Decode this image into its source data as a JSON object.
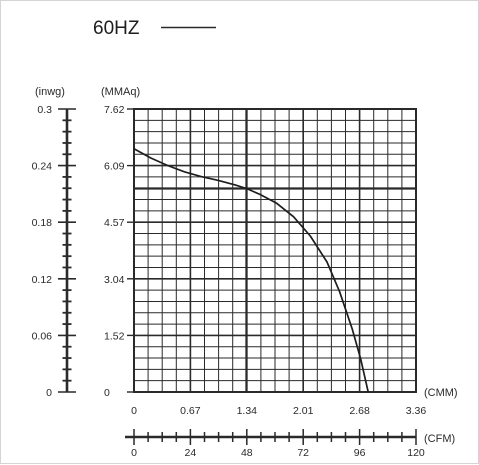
{
  "chart_data": {
    "type": "line",
    "title": "",
    "legend": [
      {
        "label": "60HZ",
        "color": "#2a2a2a",
        "style": "solid"
      }
    ],
    "x_axes": [
      {
        "unit": "(CMM)",
        "ticks": [
          "0",
          "0.67",
          "1.34",
          "2.01",
          "2.68",
          "3.36"
        ],
        "range": [
          0,
          3.36
        ]
      },
      {
        "unit": "(CFM)",
        "ticks": [
          "0",
          "24",
          "48",
          "72",
          "96",
          "120"
        ],
        "range": [
          0,
          120
        ]
      }
    ],
    "y_axes": [
      {
        "unit": "(inwg)",
        "ticks": [
          "0",
          "0.06",
          "0.12",
          "0.18",
          "0.24",
          "0.3"
        ],
        "range": [
          0,
          0.3
        ]
      },
      {
        "unit": "(MMAq)",
        "ticks": [
          "0",
          "1.52",
          "3.04",
          "4.57",
          "6.09",
          "7.62"
        ],
        "range": [
          0,
          7.62
        ]
      }
    ],
    "grid": true,
    "series": [
      {
        "name": "60HZ",
        "x_unit": "CMM",
        "y_unit": "MMAq",
        "points": [
          [
            0,
            6.55
          ],
          [
            0.2,
            6.3
          ],
          [
            0.4,
            6.1
          ],
          [
            0.6,
            5.93
          ],
          [
            0.8,
            5.8
          ],
          [
            1.0,
            5.7
          ],
          [
            1.2,
            5.58
          ],
          [
            1.34,
            5.48
          ],
          [
            1.5,
            5.32
          ],
          [
            1.7,
            5.08
          ],
          [
            1.9,
            4.72
          ],
          [
            2.1,
            4.2
          ],
          [
            2.3,
            3.5
          ],
          [
            2.45,
            2.7
          ],
          [
            2.6,
            1.7
          ],
          [
            2.7,
            0.9
          ],
          [
            2.79,
            0
          ]
        ]
      }
    ]
  }
}
